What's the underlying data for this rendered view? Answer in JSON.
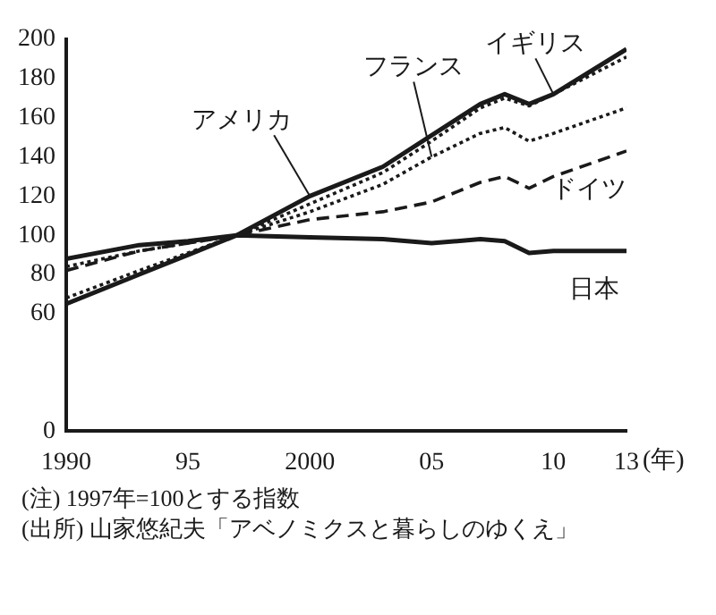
{
  "chart_data": {
    "type": "line",
    "x": [
      1990,
      1993,
      1995,
      1997,
      2000,
      2003,
      2005,
      2007,
      2008,
      2009,
      2010,
      2013
    ],
    "series": [
      {
        "name": "日本",
        "color": "#1a1a1a",
        "line_style": "solid",
        "values": [
          88,
          95,
          97,
          100,
          99,
          98,
          96,
          98,
          97,
          91,
          92,
          92
        ]
      },
      {
        "name": "アメリカ",
        "color": "#1a1a1a",
        "line_style": "solid",
        "values": [
          65,
          80,
          90,
          100,
          120,
          135,
          151,
          167,
          172,
          167,
          172,
          195
        ]
      },
      {
        "name": "イギリス",
        "color": "#1a1a1a",
        "line_style": "dotted",
        "values": [
          68,
          82,
          91,
          100,
          116,
          132,
          148,
          165,
          170,
          166,
          172,
          191
        ]
      },
      {
        "name": "フランス",
        "color": "#1a1a1a",
        "line_style": "dotted",
        "values": [
          84,
          92,
          96,
          100,
          112,
          126,
          140,
          152,
          155,
          148,
          152,
          165
        ]
      },
      {
        "name": "ドイツ",
        "color": "#1a1a1a",
        "line_style": "dashed",
        "values": [
          82,
          92,
          96,
          100,
          108,
          112,
          117,
          127,
          130,
          124,
          130,
          143
        ]
      }
    ],
    "xlim": [
      1990,
      2013
    ],
    "xticks": [
      1990,
      {
        "value": 1995,
        "label": "95"
      },
      2000,
      {
        "value": 2005,
        "label": "05"
      },
      {
        "value": 2010,
        "label": "10"
      },
      {
        "value": 2013,
        "label": "13"
      }
    ],
    "xlabel": "(年)",
    "ylim": [
      0,
      200
    ],
    "yticks": [
      0,
      60,
      80,
      100,
      120,
      140,
      160,
      180,
      200
    ],
    "grid": false,
    "legend": false,
    "marker": "none",
    "annotations": [
      "(注) 1997年=100とする指数",
      "(出所) 山家悠紀夫「アベノミクスと暮らしのゆくえ」"
    ]
  }
}
